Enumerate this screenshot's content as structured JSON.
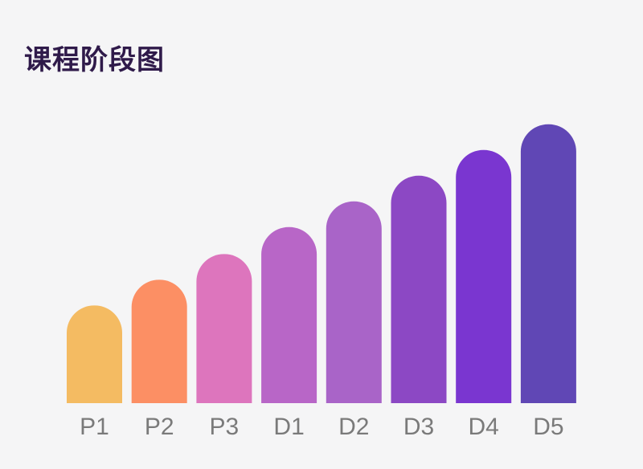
{
  "chart_data": {
    "type": "bar",
    "title": "课程阶段图",
    "categories": [
      "P1",
      "P2",
      "P3",
      "D1",
      "D2",
      "D3",
      "D4",
      "D5"
    ],
    "values": [
      3.8,
      4.8,
      5.8,
      6.85,
      7.85,
      8.85,
      9.85,
      10.85
    ],
    "ylim": [
      0,
      11
    ],
    "grid": false,
    "legend": "none",
    "colors": [
      "#f4bb62",
      "#fc8f64",
      "#dd75bd",
      "#b866c7",
      "#a964c8",
      "#8c48c4",
      "#7a36d0",
      "#6047b5"
    ]
  }
}
